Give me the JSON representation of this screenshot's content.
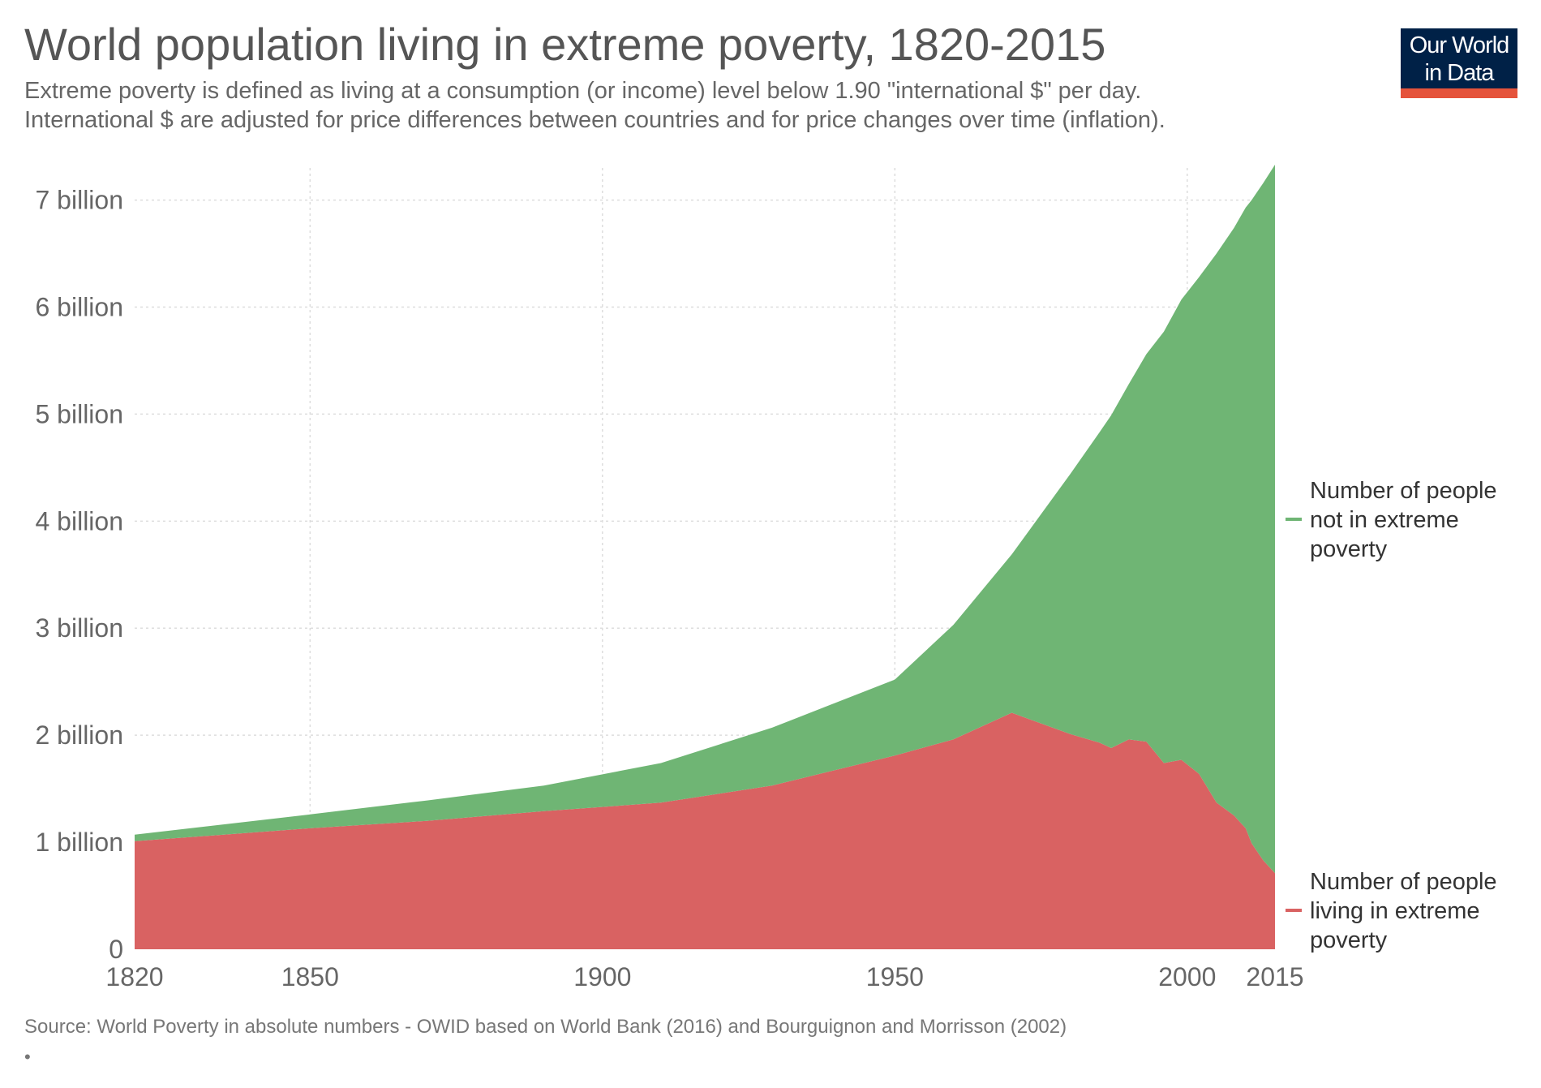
{
  "header": {
    "title": "World population living in extreme poverty, 1820-2015",
    "subtitle_line1": "Extreme poverty is defined as living at a consumption (or income) level below 1.90 \"international $\" per day.",
    "subtitle_line2": "International $ are adjusted for price differences between countries and for price changes over time (inflation)."
  },
  "logo": {
    "line1": "Our World",
    "line2": "in Data",
    "bg_color": "#002147",
    "accent_color": "#e5533b"
  },
  "footer": {
    "source": "Source: World Poverty in absolute numbers - OWID based on World Bank (2016) and Bourguignon and Morrisson (2002)",
    "mark": "•"
  },
  "chart_data": {
    "type": "area",
    "stacked": true,
    "title": "World population living in extreme poverty, 1820-2015",
    "xlim": [
      1820,
      2015
    ],
    "ylim": [
      0,
      7300000000
    ],
    "x_ticks": [
      1820,
      1850,
      1900,
      1950,
      2000,
      2015
    ],
    "x_tick_labels": [
      "1820",
      "1850",
      "1900",
      "1950",
      "2000",
      "2015"
    ],
    "y_ticks": [
      0,
      1000000000,
      2000000000,
      3000000000,
      4000000000,
      5000000000,
      6000000000,
      7000000000
    ],
    "y_tick_labels": [
      "0",
      "1 billion",
      "2 billion",
      "3 billion",
      "4 billion",
      "5 billion",
      "6 billion",
      "7 billion"
    ],
    "grid": true,
    "legend_position": "right",
    "x": [
      1820,
      1850,
      1870,
      1890,
      1910,
      1929,
      1950,
      1960,
      1970,
      1980,
      1985,
      1987,
      1990,
      1993,
      1996,
      1999,
      2002,
      2005,
      2008,
      2010,
      2011,
      2012,
      2013,
      2015
    ],
    "series": [
      {
        "name": "Number of people living in extreme poverty",
        "color": "#d96262",
        "values": [
          1010000000,
          1130000000,
          1200000000,
          1290000000,
          1370000000,
          1530000000,
          1810000000,
          1960000000,
          2210000000,
          2010000000,
          1930000000,
          1880000000,
          1960000000,
          1940000000,
          1740000000,
          1770000000,
          1640000000,
          1370000000,
          1250000000,
          1130000000,
          990000000,
          910000000,
          830000000,
          710000000
        ]
      },
      {
        "name": "Number of people not in extreme poverty",
        "color": "#6fb574",
        "values": [
          60000000,
          130000000,
          190000000,
          240000000,
          370000000,
          540000000,
          710000000,
          1070000000,
          1480000000,
          2430000000,
          2900000000,
          3110000000,
          3320000000,
          3620000000,
          4030000000,
          4300000000,
          4640000000,
          5130000000,
          5490000000,
          5800000000,
          6010000000,
          6170000000,
          6330000000,
          6620000000
        ]
      }
    ]
  }
}
